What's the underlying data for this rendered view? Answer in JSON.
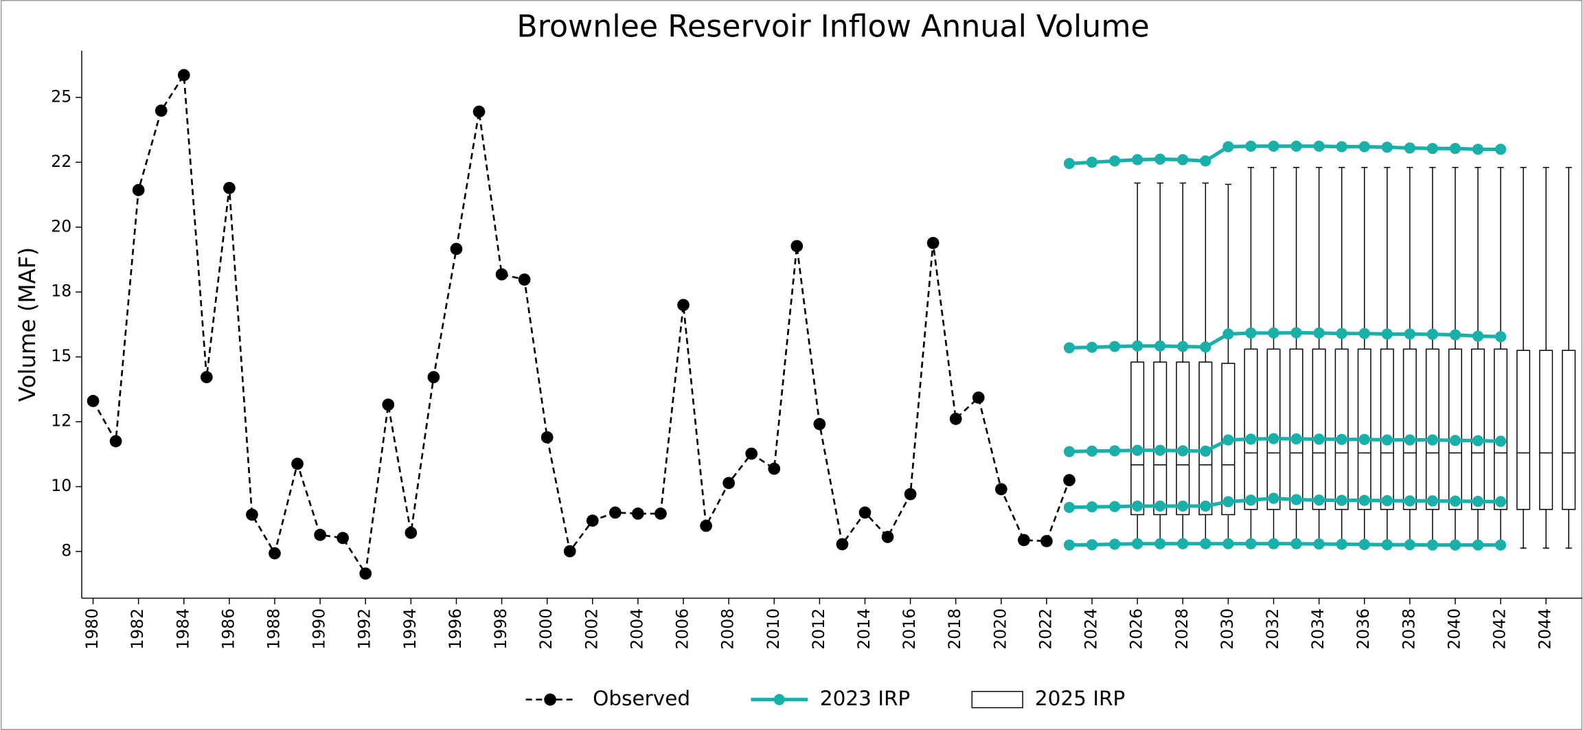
{
  "chart_data": {
    "type": "line",
    "title": "Brownlee Reservoir Inflow Annual Volume",
    "ylabel": "Volume (MAF)",
    "xlim": [
      1979.5,
      2045.6
    ],
    "xticks": [
      1980,
      1982,
      1984,
      1986,
      1988,
      1990,
      1992,
      1994,
      1996,
      1998,
      2000,
      2002,
      2004,
      2006,
      2008,
      2010,
      2012,
      2014,
      2016,
      2018,
      2020,
      2022,
      2024,
      2026,
      2028,
      2030,
      2032,
      2034,
      2036,
      2038,
      2040,
      2042,
      2044
    ],
    "ylim": [
      5.7,
      26.8
    ],
    "yticks": [
      {
        "value": 7.5,
        "label": "8"
      },
      {
        "value": 10,
        "label": "10"
      },
      {
        "value": 12.5,
        "label": "12"
      },
      {
        "value": 15,
        "label": "15"
      },
      {
        "value": 17.5,
        "label": "18"
      },
      {
        "value": 20,
        "label": "20"
      },
      {
        "value": 22.5,
        "label": "22"
      },
      {
        "value": 25,
        "label": "25"
      }
    ],
    "observed": {
      "name": "Observed",
      "color": "#000000",
      "x": [
        1980,
        1981,
        1982,
        1983,
        1984,
        1985,
        1986,
        1987,
        1988,
        1989,
        1990,
        1991,
        1992,
        1993,
        1994,
        1995,
        1996,
        1997,
        1998,
        1999,
        2000,
        2001,
        2002,
        2003,
        2004,
        2005,
        2006,
        2007,
        2008,
        2009,
        2010,
        2011,
        2012,
        2013,
        2014,
        2015,
        2016,
        2017,
        2018,
        2019,
        2020,
        2021,
        2022,
        2023
      ],
      "values": [
        13.3,
        11.75,
        21.43,
        24.49,
        25.86,
        14.22,
        21.51,
        8.92,
        7.43,
        10.88,
        8.14,
        8.02,
        6.65,
        13.16,
        8.22,
        14.22,
        19.16,
        24.45,
        18.18,
        17.98,
        11.9,
        7.51,
        8.69,
        9.0,
        8.96,
        8.96,
        17.0,
        8.49,
        10.14,
        11.27,
        10.69,
        19.27,
        12.41,
        7.78,
        9.0,
        8.06,
        9.71,
        19.39,
        12.61,
        13.43,
        9.9,
        7.94,
        7.9,
        10.25
      ]
    },
    "irp_2023": {
      "name": "2023 IRP",
      "color": "#1ab0aa",
      "x": [
        2023,
        2024,
        2025,
        2026,
        2027,
        2028,
        2029,
        2030,
        2031,
        2032,
        2033,
        2034,
        2035,
        2036,
        2037,
        2038,
        2039,
        2040,
        2041,
        2042
      ],
      "lines": [
        [
          22.45,
          22.5,
          22.55,
          22.6,
          22.62,
          22.6,
          22.55,
          23.1,
          23.12,
          23.12,
          23.12,
          23.12,
          23.1,
          23.1,
          23.08,
          23.05,
          23.03,
          23.03,
          23.0,
          23.0
        ],
        [
          15.35,
          15.37,
          15.4,
          15.42,
          15.42,
          15.4,
          15.38,
          15.88,
          15.92,
          15.92,
          15.93,
          15.92,
          15.9,
          15.9,
          15.88,
          15.88,
          15.87,
          15.85,
          15.8,
          15.78
        ],
        [
          11.35,
          11.37,
          11.38,
          11.4,
          11.4,
          11.38,
          11.37,
          11.8,
          11.83,
          11.85,
          11.84,
          11.83,
          11.82,
          11.82,
          11.8,
          11.8,
          11.8,
          11.78,
          11.77,
          11.75
        ],
        [
          9.2,
          9.22,
          9.23,
          9.25,
          9.25,
          9.25,
          9.25,
          9.42,
          9.48,
          9.55,
          9.5,
          9.48,
          9.47,
          9.47,
          9.46,
          9.45,
          9.45,
          9.44,
          9.43,
          9.42
        ],
        [
          7.75,
          7.76,
          7.78,
          7.8,
          7.8,
          7.8,
          7.8,
          7.8,
          7.8,
          7.8,
          7.8,
          7.79,
          7.78,
          7.77,
          7.76,
          7.76,
          7.75,
          7.75,
          7.75,
          7.75
        ]
      ]
    },
    "irp_2025": {
      "name": "2025 IRP",
      "color": "#000000",
      "x": [
        2026,
        2027,
        2028,
        2029,
        2030,
        2031,
        2032,
        2033,
        2034,
        2035,
        2036,
        2037,
        2038,
        2039,
        2040,
        2041,
        2042,
        2043,
        2044,
        2045
      ],
      "whishi": [
        21.7,
        21.7,
        21.7,
        21.7,
        21.65,
        22.3,
        22.3,
        22.3,
        22.3,
        22.3,
        22.3,
        22.3,
        22.3,
        22.3,
        22.3,
        22.3,
        22.3,
        22.3,
        22.3,
        22.3
      ],
      "q3": [
        14.8,
        14.8,
        14.8,
        14.8,
        14.75,
        15.3,
        15.3,
        15.3,
        15.3,
        15.3,
        15.3,
        15.3,
        15.3,
        15.3,
        15.3,
        15.3,
        15.3,
        15.25,
        15.25,
        15.25
      ],
      "med": [
        10.84,
        10.84,
        10.84,
        10.84,
        10.84,
        11.3,
        11.3,
        11.3,
        11.3,
        11.3,
        11.3,
        11.3,
        11.3,
        11.3,
        11.3,
        11.3,
        11.3,
        11.3,
        11.3,
        11.3
      ],
      "q1": [
        8.92,
        8.92,
        8.92,
        8.92,
        8.92,
        9.12,
        9.12,
        9.12,
        9.12,
        9.12,
        9.12,
        9.12,
        9.12,
        9.12,
        9.12,
        9.12,
        9.12,
        9.12,
        9.12,
        9.12
      ],
      "whislo": [
        7.7,
        7.7,
        7.7,
        7.7,
        7.7,
        7.63,
        7.63,
        7.63,
        7.63,
        7.63,
        7.63,
        7.63,
        7.63,
        7.63,
        7.63,
        7.63,
        7.63,
        7.63,
        7.63,
        7.63
      ]
    }
  }
}
